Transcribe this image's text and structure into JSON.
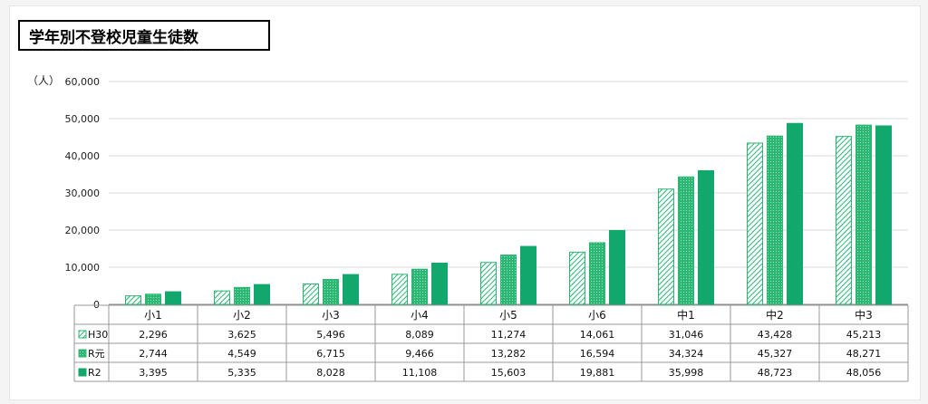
{
  "chart_data": {
    "type": "bar",
    "title": "学年別不登校児童生徒数",
    "ylabel": "（人）",
    "ylim": [
      0,
      60000
    ],
    "yticks": [
      "0",
      "10,000",
      "20,000",
      "30,000",
      "40,000",
      "50,000",
      "60,000"
    ],
    "categories": [
      "小1",
      "小2",
      "小3",
      "小4",
      "小5",
      "小6",
      "中1",
      "中2",
      "中3"
    ],
    "series": [
      {
        "name": "H30",
        "values": [
          2296,
          3625,
          5496,
          8089,
          11274,
          14061,
          31046,
          43428,
          45213
        ],
        "labels": [
          "2,296",
          "3,625",
          "5,496",
          "8,089",
          "11,274",
          "14,061",
          "31,046",
          "43,428",
          "45,213"
        ],
        "color": "#2bb673",
        "pattern": "hatched"
      },
      {
        "name": "R元",
        "values": [
          2744,
          4549,
          6715,
          9466,
          13282,
          16594,
          34324,
          45327,
          48271
        ],
        "labels": [
          "2,744",
          "4,549",
          "6,715",
          "9,466",
          "13,282",
          "16,594",
          "34,324",
          "45,327",
          "48,271"
        ],
        "color": "#2bb673",
        "pattern": "dotted"
      },
      {
        "name": "R2",
        "values": [
          3395,
          5335,
          8028,
          11108,
          15603,
          19881,
          35998,
          48723,
          48056
        ],
        "labels": [
          "3,395",
          "5,335",
          "8,028",
          "11,108",
          "15,603",
          "19,881",
          "35,998",
          "48,723",
          "48,056"
        ],
        "color": "#13a86b",
        "pattern": "solid"
      }
    ],
    "grid": true,
    "legend": "table-left"
  }
}
